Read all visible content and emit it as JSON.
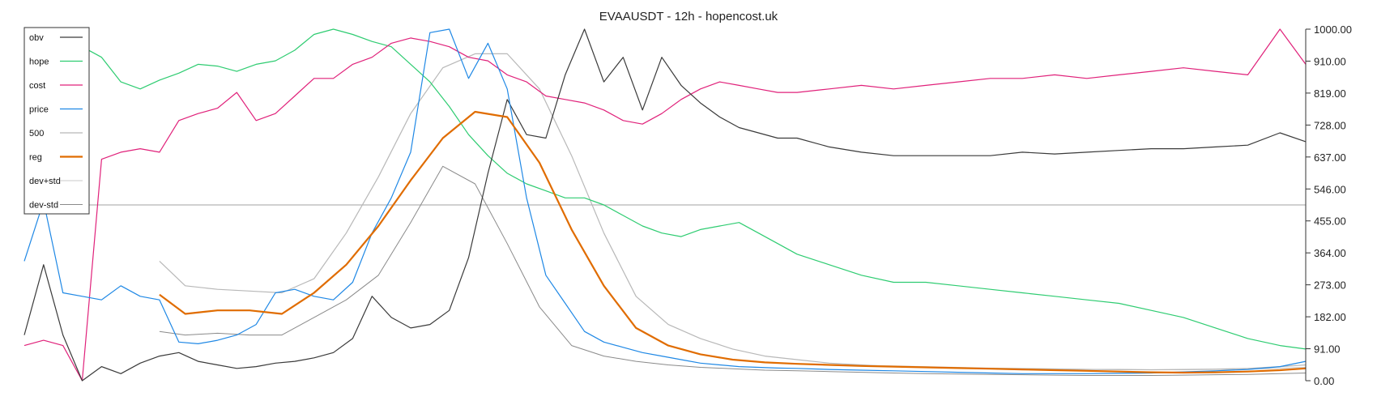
{
  "chart_data": {
    "type": "line",
    "title": "EVAAUSDT - 12h - hopencost.uk",
    "xlabel": "",
    "ylabel": "",
    "ylim": [
      0,
      1000
    ],
    "yticks": [
      "0.00",
      "91.00",
      "182.00",
      "273.00",
      "364.00",
      "455.00",
      "546.00",
      "637.00",
      "728.00",
      "819.00",
      "910.00",
      "1000.00"
    ],
    "hline": 500,
    "grid": false,
    "legend_position": "top-left",
    "n_points": 200,
    "series": [
      {
        "name": "obv",
        "color": "#3a3a3a",
        "width": 1.2,
        "x": [
          0,
          3,
          6,
          9,
          12,
          15,
          18,
          21,
          24,
          27,
          30,
          33,
          36,
          39,
          42,
          45,
          48,
          51,
          54,
          57,
          60,
          63,
          66,
          69,
          72,
          75,
          78,
          81,
          84,
          87,
          90,
          93,
          96,
          99,
          102,
          105,
          108,
          111,
          114,
          117,
          120,
          125,
          130,
          135,
          140,
          145,
          150,
          155,
          160,
          165,
          170,
          175,
          180,
          185,
          190,
          195,
          199
        ],
        "values": [
          130,
          330,
          130,
          0,
          40,
          20,
          50,
          70,
          80,
          55,
          45,
          35,
          40,
          50,
          55,
          65,
          80,
          120,
          240,
          180,
          150,
          160,
          200,
          350,
          590,
          800,
          700,
          690,
          870,
          1000,
          850,
          920,
          770,
          920,
          840,
          790,
          750,
          720,
          705,
          690,
          690,
          665,
          650,
          640,
          640,
          640,
          640,
          650,
          645,
          650,
          655,
          660,
          660,
          665,
          670,
          705,
          680
        ]
      },
      {
        "name": "hope",
        "color": "#2ecc71",
        "width": 1.2,
        "x": [
          0,
          3,
          6,
          9,
          12,
          15,
          18,
          21,
          24,
          27,
          30,
          33,
          36,
          39,
          42,
          45,
          48,
          51,
          54,
          57,
          60,
          63,
          66,
          69,
          72,
          75,
          78,
          81,
          84,
          87,
          90,
          93,
          96,
          99,
          102,
          105,
          108,
          111,
          114,
          117,
          120,
          125,
          130,
          135,
          140,
          145,
          150,
          155,
          160,
          165,
          170,
          175,
          180,
          185,
          190,
          195,
          199
        ],
        "values": [
          960,
          920,
          935,
          950,
          920,
          850,
          830,
          855,
          875,
          900,
          895,
          880,
          900,
          910,
          940,
          985,
          1000,
          985,
          965,
          950,
          900,
          850,
          780,
          700,
          640,
          590,
          560,
          540,
          520,
          520,
          500,
          470,
          440,
          420,
          410,
          430,
          440,
          450,
          420,
          390,
          360,
          330,
          300,
          280,
          280,
          270,
          260,
          250,
          240,
          230,
          220,
          200,
          180,
          150,
          120,
          100,
          90
        ]
      },
      {
        "name": "cost",
        "color": "#e0217a",
        "width": 1.2,
        "x": [
          0,
          3,
          6,
          9,
          12,
          15,
          18,
          21,
          24,
          27,
          30,
          33,
          36,
          39,
          42,
          45,
          48,
          51,
          54,
          57,
          60,
          63,
          66,
          69,
          72,
          75,
          78,
          81,
          84,
          87,
          90,
          93,
          96,
          99,
          102,
          105,
          108,
          111,
          114,
          117,
          120,
          125,
          130,
          135,
          140,
          145,
          150,
          155,
          160,
          165,
          170,
          175,
          180,
          185,
          190,
          195,
          199
        ],
        "values": [
          100,
          115,
          100,
          0,
          630,
          650,
          660,
          650,
          740,
          760,
          775,
          820,
          740,
          760,
          810,
          860,
          860,
          900,
          920,
          960,
          975,
          965,
          950,
          920,
          910,
          870,
          850,
          810,
          800,
          790,
          770,
          740,
          730,
          760,
          800,
          830,
          850,
          840,
          830,
          820,
          820,
          830,
          840,
          830,
          840,
          850,
          860,
          860,
          870,
          860,
          870,
          880,
          890,
          880,
          870,
          1000,
          900
        ]
      },
      {
        "name": "price",
        "color": "#1f88e5",
        "width": 1.2,
        "x": [
          0,
          3,
          6,
          9,
          12,
          15,
          18,
          21,
          24,
          27,
          30,
          33,
          36,
          39,
          42,
          45,
          48,
          51,
          54,
          57,
          60,
          63,
          66,
          69,
          72,
          75,
          78,
          81,
          84,
          87,
          90,
          93,
          96,
          99,
          102,
          105,
          108,
          111,
          114,
          117,
          120,
          125,
          130,
          135,
          140,
          145,
          150,
          155,
          160,
          165,
          170,
          175,
          180,
          185,
          190,
          195,
          199
        ],
        "values": [
          340,
          510,
          250,
          240,
          230,
          270,
          240,
          230,
          110,
          105,
          115,
          130,
          160,
          250,
          260,
          240,
          230,
          280,
          420,
          520,
          650,
          990,
          1000,
          860,
          960,
          830,
          520,
          300,
          220,
          140,
          110,
          95,
          80,
          70,
          60,
          50,
          45,
          40,
          38,
          36,
          35,
          32,
          30,
          28,
          26,
          24,
          22,
          20,
          20,
          20,
          21,
          22,
          25,
          28,
          32,
          40,
          55
        ]
      },
      {
        "name": "500",
        "color": "#b8b8b8",
        "width": 1.2,
        "x": [
          21,
          25,
          30,
          35,
          40,
          45,
          50,
          55,
          60,
          65,
          70,
          75,
          80,
          85,
          90,
          95,
          100,
          105,
          110,
          115,
          120,
          125,
          130,
          135,
          140,
          145,
          150,
          155,
          160,
          165,
          170,
          175,
          180,
          185,
          190,
          195,
          199
        ],
        "values": [
          340,
          270,
          260,
          255,
          250,
          290,
          420,
          580,
          760,
          890,
          930,
          930,
          830,
          640,
          420,
          240,
          160,
          120,
          90,
          70,
          60,
          50,
          45,
          40,
          38,
          36,
          35,
          34,
          33,
          32,
          32,
          31,
          32,
          33,
          35,
          40,
          45
        ]
      },
      {
        "name": "reg",
        "color": "#e06c00",
        "width": 2.2,
        "x": [
          21,
          25,
          30,
          35,
          40,
          45,
          50,
          55,
          60,
          65,
          70,
          75,
          80,
          85,
          90,
          95,
          100,
          105,
          110,
          115,
          120,
          125,
          130,
          135,
          140,
          145,
          150,
          155,
          160,
          165,
          170,
          175,
          180,
          185,
          190,
          195,
          199
        ],
        "values": [
          245,
          190,
          200,
          200,
          190,
          250,
          330,
          440,
          570,
          690,
          765,
          750,
          620,
          430,
          270,
          150,
          100,
          75,
          60,
          52,
          48,
          45,
          42,
          40,
          38,
          36,
          34,
          32,
          30,
          28,
          26,
          24,
          23,
          24,
          26,
          30,
          35
        ]
      },
      {
        "name": "dev+std",
        "color": "#c8c8c8",
        "width": 1.0,
        "x": [
          120,
          130,
          140,
          150,
          160,
          170,
          180,
          190,
          199
        ],
        "values": [
          48,
          44,
          40,
          36,
          34,
          31,
          31,
          33,
          38
        ]
      },
      {
        "name": "dev-std",
        "color": "#8a8a8a",
        "width": 1.0,
        "x": [
          21,
          25,
          30,
          35,
          40,
          45,
          50,
          55,
          60,
          65,
          70,
          75,
          80,
          85,
          90,
          95,
          100,
          105,
          110,
          115,
          120,
          125,
          130,
          135,
          140,
          145,
          150,
          155,
          160,
          165,
          170,
          175,
          180,
          185,
          190,
          195,
          199
        ],
        "values": [
          140,
          130,
          135,
          130,
          130,
          180,
          230,
          300,
          450,
          610,
          560,
          390,
          210,
          100,
          70,
          55,
          45,
          38,
          34,
          30,
          28,
          26,
          24,
          22,
          20,
          19,
          18,
          17,
          16,
          15,
          15,
          15,
          16,
          17,
          18,
          20,
          22
        ]
      }
    ]
  }
}
